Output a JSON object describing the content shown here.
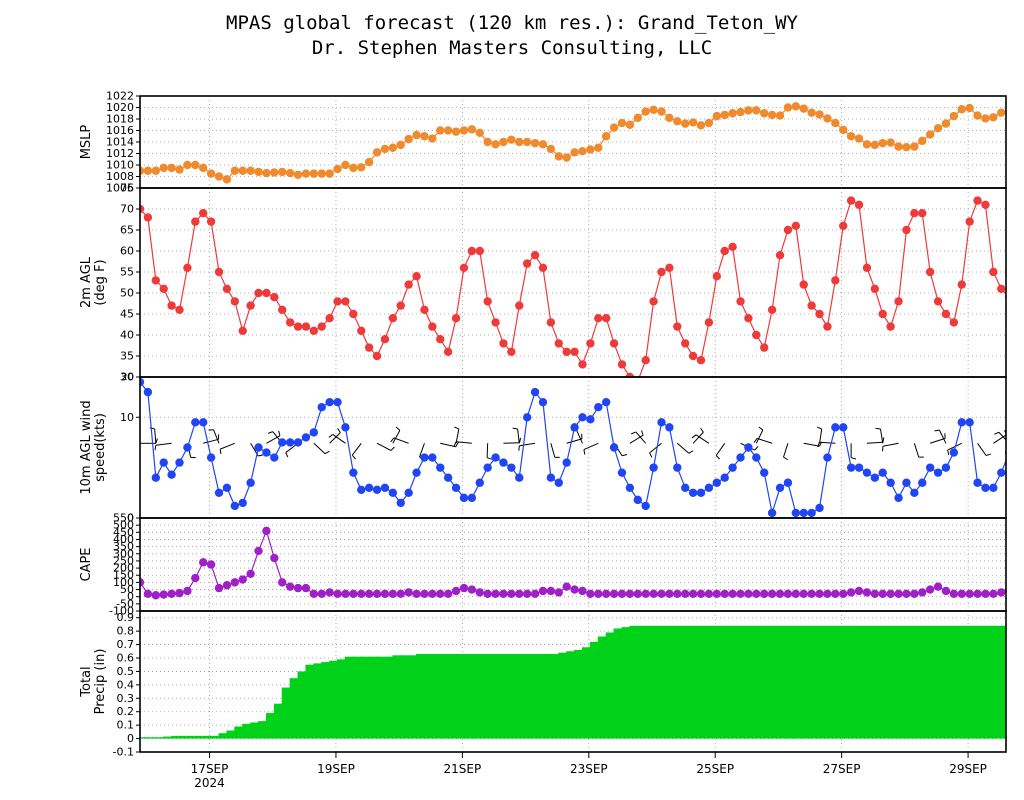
{
  "title": "MPAS global forecast (120 km res.): Grand_Teton_WY",
  "subtitle": "Dr. Stephen Masters Consulting, LLC",
  "x_axis": {
    "ticks": [
      "17SEP",
      "19SEP",
      "21SEP",
      "23SEP",
      "25SEP",
      "27SEP",
      "29SEP"
    ],
    "tick_day": [
      17,
      19,
      21,
      23,
      25,
      27,
      29
    ],
    "year_label": "2024",
    "range_days": [
      15.9,
      29.6
    ]
  },
  "colors": {
    "mslp": "#ef8a2d",
    "temp": "#ef3a3a",
    "wind": "#1f45f5",
    "cape": "#a020c8",
    "precip": "#00d21a"
  },
  "chart_data": [
    {
      "type": "line",
      "ylabel": "MSLP",
      "ylim": [
        1006,
        1022
      ],
      "yticks": [
        "1006",
        "1008",
        "1010",
        "1012",
        "1014",
        "1016",
        "1018",
        "1020",
        "1022"
      ],
      "grid": true,
      "x_start_day": 15.9,
      "x_step_days": 0.125,
      "values": [
        1009,
        1009,
        1009,
        1009.5,
        1009.5,
        1009.2,
        1010,
        1010,
        1009.5,
        1008.5,
        1008,
        1007.5,
        1009,
        1009,
        1009,
        1008.8,
        1008.6,
        1008.7,
        1008.8,
        1008.6,
        1008.3,
        1008.5,
        1008.5,
        1008.5,
        1008.5,
        1009.3,
        1010,
        1009.5,
        1009.6,
        1010.5,
        1012.2,
        1012.8,
        1013,
        1013.5,
        1014.5,
        1015.2,
        1015,
        1014.6,
        1016,
        1016,
        1015.8,
        1016,
        1016.2,
        1015.6,
        1014,
        1013.6,
        1014,
        1014.4,
        1014,
        1014,
        1013.8,
        1013.6,
        1012.8,
        1011.5,
        1011.3,
        1012.2,
        1012.4,
        1012.7,
        1013,
        1015,
        1016.5,
        1017.3,
        1017,
        1018.2,
        1019.3,
        1019.6,
        1019.3,
        1018.2,
        1017.6,
        1017.2,
        1017.4,
        1016.9,
        1017.3,
        1018.5,
        1018.7,
        1019,
        1019.2,
        1019.5,
        1019.5,
        1019,
        1018.7,
        1018.6,
        1020,
        1020.2,
        1019.8,
        1019.1,
        1018.8,
        1018.1,
        1017.3,
        1016.1,
        1015,
        1014.6,
        1013.6,
        1013.5,
        1013.8,
        1013.9,
        1013.2,
        1013.1,
        1013.2,
        1014.2,
        1015.3,
        1016.4,
        1017.2,
        1018.5,
        1019.7,
        1019.9,
        1018.6,
        1018.1,
        1018.3,
        1019.1,
        1019.4,
        1019.3,
        1019.3,
        1019.2,
        1019,
        1018.4,
        1017,
        1016.4,
        1016.9,
        1016.5,
        1016.3,
        1016.2,
        1016.2
      ]
    },
    {
      "type": "line",
      "ylabel": "2m AGL",
      "ylabel2": "(deg F)",
      "ylim": [
        30,
        75
      ],
      "yticks": [
        "30",
        "35",
        "40",
        "45",
        "50",
        "55",
        "60",
        "65",
        "70",
        "75"
      ],
      "bottom_label": "20",
      "grid": true,
      "x_start_day": 15.9,
      "x_step_days": 0.125,
      "values": [
        70,
        68,
        53,
        51,
        47,
        46,
        56,
        67,
        69,
        67,
        55,
        51,
        48,
        41,
        47,
        50,
        50,
        49,
        46,
        43,
        42,
        42,
        41,
        42,
        44,
        48,
        48,
        45,
        41,
        37,
        35,
        39,
        44,
        47,
        52,
        54,
        46,
        42,
        39,
        36,
        44,
        56,
        60,
        60,
        48,
        43,
        38,
        36,
        47,
        57,
        59,
        56,
        43,
        38,
        36,
        36,
        33,
        38,
        44,
        44,
        38,
        33,
        30,
        29,
        34,
        48,
        55,
        56,
        42,
        38,
        35,
        34,
        43,
        54,
        60,
        61,
        48,
        44,
        40,
        37,
        46,
        59,
        65,
        66,
        52,
        47,
        45,
        42,
        53,
        66,
        72,
        71,
        56,
        51,
        45,
        42,
        48,
        65,
        69,
        69,
        55,
        48,
        45,
        43,
        52,
        67,
        72,
        71,
        55,
        51,
        49,
        47,
        56
      ]
    },
    {
      "type": "line",
      "ylabel": "10m AGL wind",
      "ylabel2": "speed(kts)",
      "ylim": [
        0,
        14
      ],
      "yticks": [
        "0",
        "10"
      ],
      "grid": true,
      "barbs": true,
      "x_start_day": 15.9,
      "x_step_days": 0.125,
      "values": [
        13.5,
        12.5,
        4,
        5.5,
        4.3,
        5.5,
        7,
        9.5,
        9.5,
        6,
        2.5,
        3,
        1.2,
        1.5,
        3.5,
        7,
        6.5,
        6,
        7.5,
        7.5,
        7.5,
        8,
        8.5,
        11,
        11.5,
        11.5,
        9,
        4.5,
        2.8,
        3,
        2.8,
        3,
        2.5,
        1.5,
        2.5,
        4.5,
        6,
        6,
        5,
        4,
        3,
        2,
        2,
        3.5,
        5,
        6,
        5.5,
        5,
        4,
        10,
        12.5,
        11.5,
        4,
        3.5,
        5.5,
        9,
        10,
        9.8,
        11,
        11.5,
        7,
        4.5,
        3,
        1.8,
        1.2,
        5,
        9.5,
        9,
        5,
        3,
        2.5,
        2.5,
        3,
        3.5,
        4,
        5,
        6,
        7,
        6,
        4.5,
        0.5,
        3,
        3.5,
        0.5,
        0.5,
        0.5,
        1,
        6,
        9,
        9,
        5,
        5,
        4.5,
        4,
        4.5,
        3.5,
        2,
        3.5,
        2.5,
        3.5,
        5,
        4.5,
        5,
        6.5,
        9.5,
        9.5,
        3.5,
        3,
        3,
        4.5,
        6.5
      ]
    },
    {
      "type": "line",
      "ylabel": "CAPE",
      "ylim": [
        -100,
        550
      ],
      "yticks": [
        "-100",
        "-50",
        "0",
        "50",
        "100",
        "150",
        "200",
        "250",
        "300",
        "350",
        "400",
        "450",
        "500",
        "550"
      ],
      "grid": true,
      "x_start_day": 15.9,
      "x_step_days": 0.125,
      "values": [
        100,
        20,
        10,
        15,
        20,
        25,
        40,
        130,
        240,
        225,
        60,
        80,
        100,
        120,
        160,
        320,
        460,
        270,
        100,
        70,
        60,
        60,
        20,
        20,
        30,
        20,
        20,
        20,
        20,
        20,
        20,
        20,
        20,
        20,
        30,
        20,
        20,
        20,
        20,
        20,
        40,
        60,
        50,
        30,
        20,
        20,
        20,
        20,
        20,
        20,
        20,
        40,
        40,
        30,
        70,
        50,
        40,
        20,
        20,
        20,
        20,
        20,
        20,
        20,
        20,
        20,
        20,
        20,
        20,
        20,
        20,
        20,
        20,
        20,
        20,
        20,
        20,
        20,
        20,
        20,
        20,
        20,
        20,
        20,
        20,
        20,
        20,
        20,
        20,
        20,
        30,
        40,
        30,
        20,
        20,
        20,
        20,
        20,
        20,
        30,
        50,
        70,
        40,
        20,
        20,
        20,
        20,
        20,
        20,
        30,
        50,
        40,
        20,
        20,
        20,
        20
      ]
    },
    {
      "type": "area",
      "ylabel": "Total",
      "ylabel2": "Precip (in)",
      "ylim": [
        -0.1,
        0.95
      ],
      "yticks": [
        "-0.1",
        "0",
        "0.1",
        "0.2",
        "0.3",
        "0.4",
        "0.5",
        "0.6",
        "0.7",
        "0.8",
        "0.9"
      ],
      "grid": true,
      "x_start_day": 15.9,
      "x_step_days": 0.125,
      "values": [
        0.01,
        0.01,
        0.01,
        0.015,
        0.02,
        0.02,
        0.02,
        0.02,
        0.02,
        0.02,
        0.04,
        0.06,
        0.09,
        0.11,
        0.12,
        0.13,
        0.19,
        0.26,
        0.38,
        0.45,
        0.5,
        0.55,
        0.56,
        0.57,
        0.58,
        0.59,
        0.61,
        0.61,
        0.61,
        0.61,
        0.61,
        0.61,
        0.62,
        0.62,
        0.62,
        0.63,
        0.63,
        0.63,
        0.63,
        0.63,
        0.63,
        0.63,
        0.63,
        0.63,
        0.63,
        0.63,
        0.63,
        0.63,
        0.63,
        0.63,
        0.63,
        0.63,
        0.63,
        0.64,
        0.65,
        0.66,
        0.68,
        0.72,
        0.76,
        0.79,
        0.82,
        0.83,
        0.84,
        0.84,
        0.84,
        0.84,
        0.84,
        0.84,
        0.84,
        0.84,
        0.84,
        0.84,
        0.84,
        0.84,
        0.84,
        0.84,
        0.84,
        0.84,
        0.84,
        0.84,
        0.84,
        0.84,
        0.84,
        0.84,
        0.84,
        0.84,
        0.84,
        0.84,
        0.84,
        0.84,
        0.84,
        0.84,
        0.84,
        0.84,
        0.84,
        0.84,
        0.84,
        0.84,
        0.84,
        0.84,
        0.84,
        0.84,
        0.84,
        0.84,
        0.84,
        0.84,
        0.84,
        0.84,
        0.84,
        0.84,
        0.84,
        0.84,
        0.84,
        0.84,
        0.84
      ]
    }
  ]
}
